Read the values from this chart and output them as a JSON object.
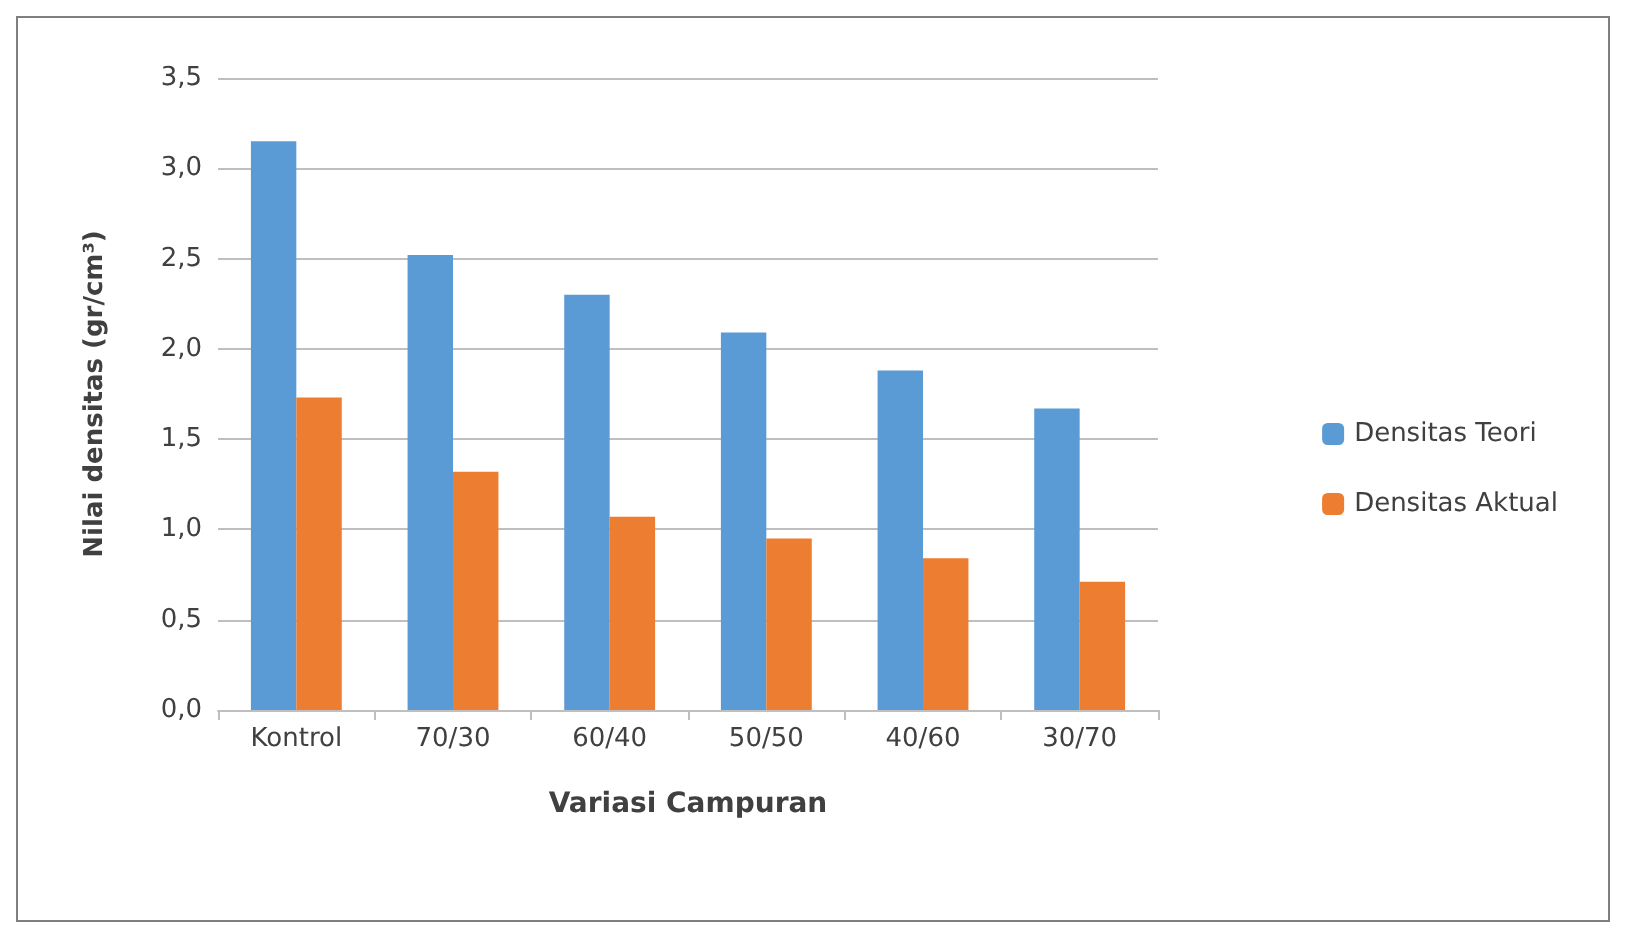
{
  "chart_data": {
    "type": "bar",
    "xlabel": "Variasi Campuran",
    "ylabel": "Nilai densitas (gr/cm³)",
    "categories": [
      "Kontrol",
      "70/30",
      "60/40",
      "50/50",
      "40/60",
      "30/70"
    ],
    "series": [
      {
        "name": "Densitas Teori",
        "color": "#5b9bd5",
        "values": [
          3.15,
          2.52,
          2.3,
          2.09,
          1.88,
          1.67
        ]
      },
      {
        "name": "Densitas Aktual",
        "color": "#ed7d31",
        "values": [
          1.73,
          1.32,
          1.07,
          0.95,
          0.84,
          0.71
        ]
      }
    ],
    "ylim": [
      0,
      3.5
    ],
    "yticks": [
      {
        "value": 0,
        "label": "0,0"
      },
      {
        "value": 0.5,
        "label": "0,5"
      },
      {
        "value": 1,
        "label": "1,0"
      },
      {
        "value": 1.5,
        "label": "1,5"
      },
      {
        "value": 2,
        "label": "2,0"
      },
      {
        "value": 2.5,
        "label": "2,5"
      },
      {
        "value": 3,
        "label": "3,0"
      },
      {
        "value": 3.5,
        "label": "3,5"
      }
    ],
    "grid": "y",
    "legend": "right"
  }
}
